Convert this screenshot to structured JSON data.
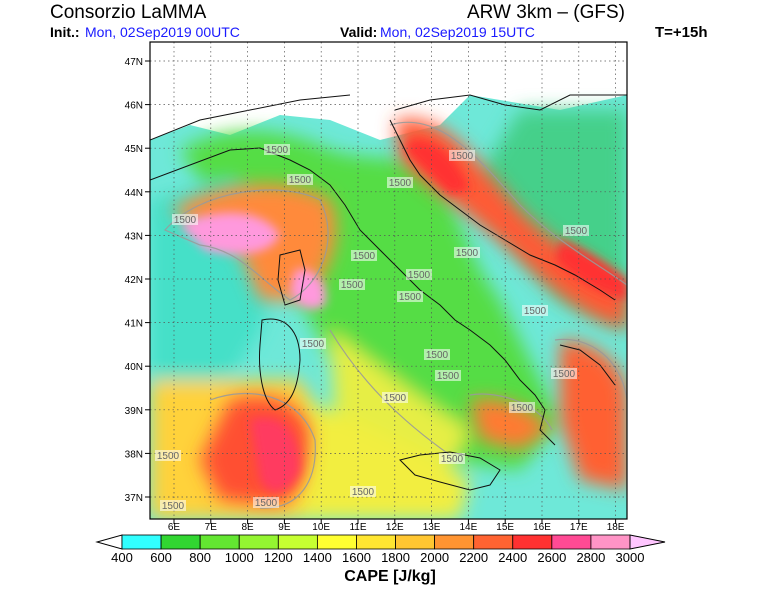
{
  "header": {
    "org": "Consorzio LaMMA",
    "model": "ARW 3km – (GFS)",
    "init_label": "Init.:",
    "init_value": "Mon, 02Sep2019  00UTC",
    "valid_label": "Valid:",
    "valid_value": "Mon, 02Sep2019  15UTC",
    "timestep": "T=+15h"
  },
  "map": {
    "lat_labels": [
      "47N",
      "46N",
      "45N",
      "44N",
      "43N",
      "42N",
      "41N",
      "40N",
      "39N",
      "38N",
      "37N"
    ],
    "lon_labels": [
      "6E",
      "7E",
      "8E",
      "9E",
      "10E",
      "11E",
      "12E",
      "13E",
      "14E",
      "15E",
      "16E",
      "17E",
      "18E"
    ],
    "contour_label": "1500",
    "colors": {
      "sea_low": "#36e6e0",
      "land_mid": "#66dd33",
      "warm": "#ffcc33",
      "hot": "#ff3333",
      "extreme": "#ff99dd"
    }
  },
  "colorbar": {
    "title": "CAPE [J/kg]",
    "ticks": [
      "400",
      "600",
      "800",
      "1000",
      "1200",
      "1400",
      "1600",
      "1800",
      "2000",
      "2200",
      "2400",
      "2600",
      "2800",
      "3000"
    ],
    "colors": [
      "#31ffff",
      "#31e6a6",
      "#31d631",
      "#63e631",
      "#94f531",
      "#c6ff31",
      "#ffff31",
      "#ffe631",
      "#ffc631",
      "#ff9431",
      "#ff6331",
      "#ff3131",
      "#ff4a94",
      "#ff94c6",
      "#ffc6ff"
    ]
  }
}
